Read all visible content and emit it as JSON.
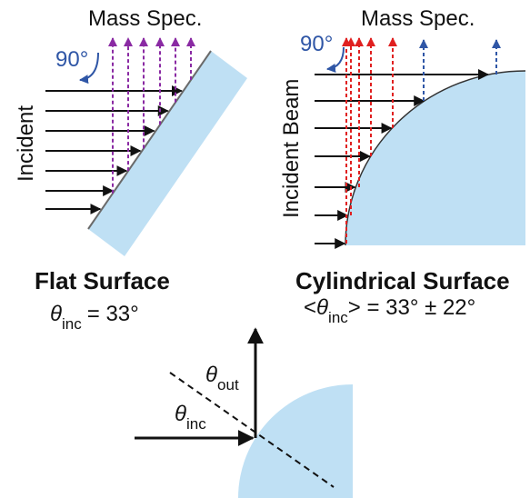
{
  "colors": {
    "surface_fill": "#bfe0f4",
    "surface_edge": "#6a6a6a",
    "incident_arrow": "#111111",
    "purple_arrow": "#8a2aa3",
    "red_arrow": "#e02020",
    "blue_arrow": "#2f56a6",
    "angle_text": "#2f56a6"
  },
  "left_panel": {
    "mass_spec_label": "Mass Spec.",
    "incident_label": "Incident",
    "angle_label": "90°",
    "title": "Flat Surface",
    "angle_symbol": "θ",
    "angle_subscript": "inc",
    "angle_value": "= 33°"
  },
  "right_panel": {
    "mass_spec_label": "Mass Spec.",
    "incident_label": "Incident Beam",
    "angle_label": "90°",
    "title": "Cylindrical Surface",
    "angle_prefix": "<",
    "angle_symbol": "θ",
    "angle_subscript": "inc",
    "angle_value": "> = 33° ± 22°"
  },
  "bottom_diagram": {
    "out_symbol": "θ",
    "out_subscript": "out",
    "inc_symbol": "θ",
    "inc_subscript": "inc"
  }
}
